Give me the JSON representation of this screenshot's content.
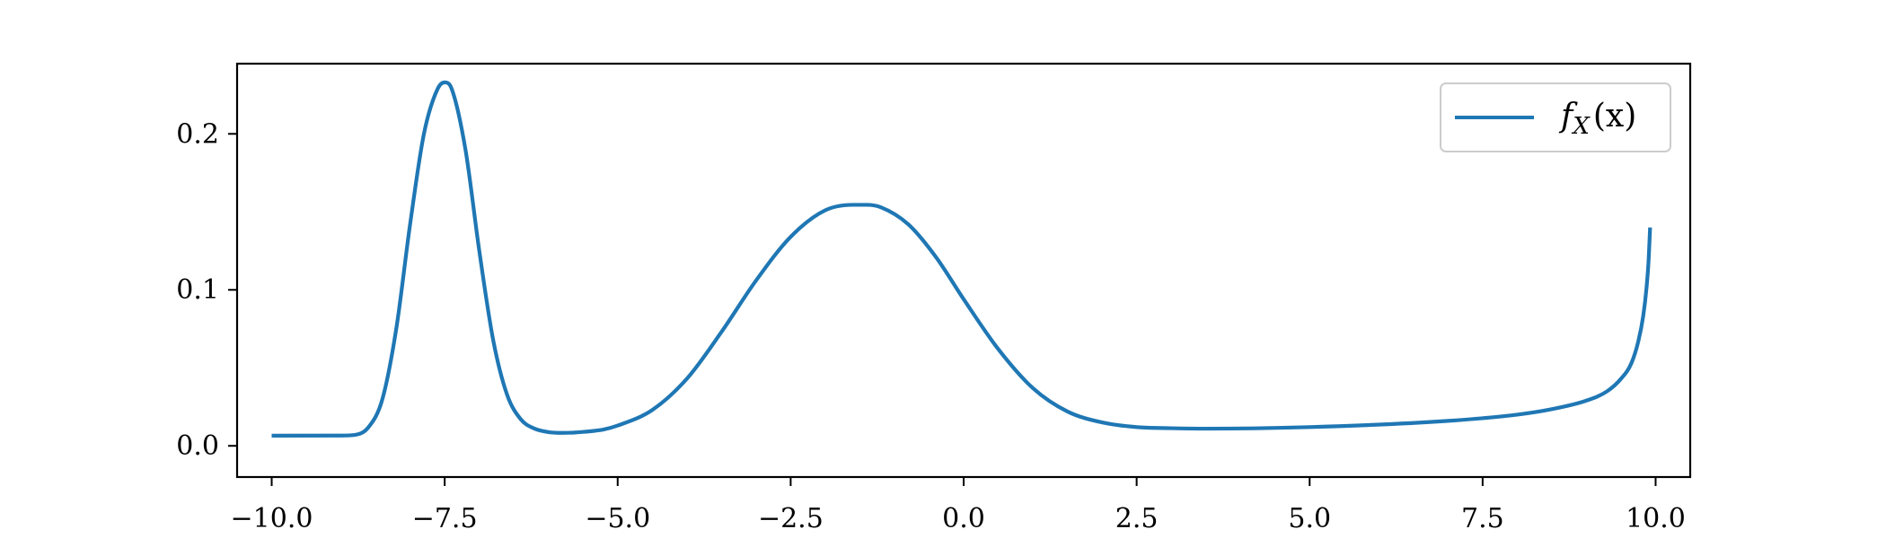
{
  "chart_data": {
    "type": "line",
    "title": "",
    "xlabel": "",
    "ylabel": "",
    "xlim": [
      -10.5,
      10.5
    ],
    "ylim": [
      -0.02,
      0.245
    ],
    "xticks": [
      -10.0,
      -7.5,
      -5.0,
      -2.5,
      0.0,
      2.5,
      5.0,
      7.5,
      10.0
    ],
    "xtick_labels": [
      "−10.0",
      "−7.5",
      "−5.0",
      "−2.5",
      "0.0",
      "2.5",
      "5.0",
      "7.5",
      "10.0"
    ],
    "yticks": [
      0.0,
      0.1,
      0.2
    ],
    "ytick_labels": [
      "0.0",
      "0.1",
      "0.2"
    ],
    "grid": false,
    "legend": {
      "placement": "top-right",
      "entries": [
        "f_X(x)"
      ]
    },
    "legend_label": {
      "main": "f",
      "sub": "X",
      "rest": "(x)"
    },
    "series": [
      {
        "name": "f_X(x)",
        "color": "#1f77b4",
        "x": [
          -10.0,
          -9.0,
          -8.8,
          -8.6,
          -8.4,
          -8.2,
          -8.0,
          -7.8,
          -7.6,
          -7.5,
          -7.4,
          -7.2,
          -7.0,
          -6.8,
          -6.6,
          -6.4,
          -6.2,
          -6.0,
          -5.8,
          -5.6,
          -5.2,
          -5.0,
          -4.5,
          -4.0,
          -3.5,
          -3.0,
          -2.5,
          -2.0,
          -1.6,
          -1.4,
          -1.2,
          -0.8,
          -0.4,
          0.0,
          0.5,
          1.0,
          1.5,
          2.0,
          2.5,
          3.0,
          3.5,
          5.0,
          7.0,
          8.0,
          8.5,
          9.0,
          9.3,
          9.5,
          9.65,
          9.75,
          9.82,
          9.87,
          9.9,
          9.92
        ],
        "y": [
          0.0065,
          0.0066,
          0.007,
          0.012,
          0.03,
          0.075,
          0.142,
          0.2,
          0.229,
          0.233,
          0.229,
          0.19,
          0.125,
          0.068,
          0.033,
          0.017,
          0.011,
          0.0088,
          0.0083,
          0.0086,
          0.0105,
          0.013,
          0.023,
          0.043,
          0.073,
          0.106,
          0.134,
          0.151,
          0.1545,
          0.1545,
          0.153,
          0.142,
          0.121,
          0.094,
          0.062,
          0.037,
          0.022,
          0.015,
          0.012,
          0.0113,
          0.011,
          0.012,
          0.016,
          0.02,
          0.0235,
          0.029,
          0.035,
          0.043,
          0.053,
          0.067,
          0.083,
          0.102,
          0.12,
          0.14
        ]
      }
    ]
  }
}
